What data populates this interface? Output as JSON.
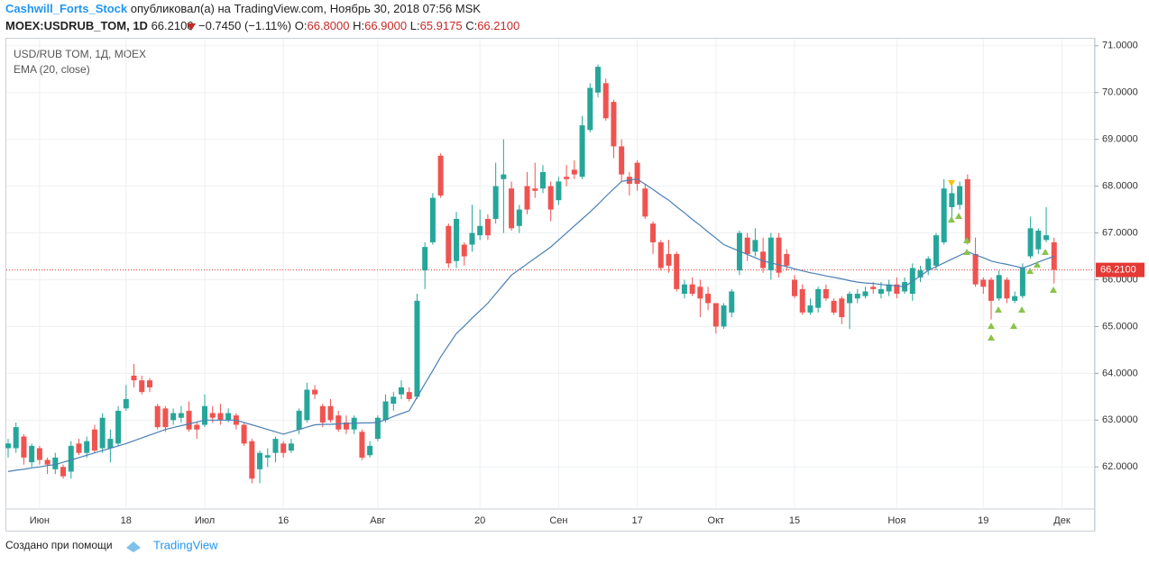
{
  "header": {
    "author": "Cashwill_Forts_Stock",
    "published": "опубликовал(а) на TradingView.com, Ноябрь 30, 2018 07:56 MSK",
    "symbol": "MOEX:USDRUB_TOM, 1D",
    "last": "66.2100",
    "change": "−0.7450 (−1.11%)",
    "o_label": "O:",
    "o_value": "66.8000",
    "h_label": "H:",
    "h_value": "66.9000",
    "l_label": "L:",
    "l_value": "65.9175",
    "c_label": "C:",
    "c_value": "66.2100"
  },
  "footer": {
    "prefix": "Создано при помощи",
    "brand": "TradingView"
  },
  "chart_data": {
    "type": "candlestick",
    "title": "USD/RUB TOM, 1Д, MOEX",
    "up_color": "#26a69a",
    "down_color": "#ef5350",
    "grid": true,
    "categories": [
      null,
      null,
      null,
      null,
      "Июн",
      null,
      null,
      null,
      null,
      null,
      null,
      null,
      null,
      null,
      null,
      "18",
      null,
      null,
      null,
      null,
      null,
      null,
      null,
      null,
      null,
      "Июл",
      null,
      null,
      null,
      null,
      null,
      null,
      null,
      null,
      null,
      "16",
      null,
      null,
      null,
      null,
      null,
      null,
      null,
      null,
      null,
      null,
      null,
      "Авг",
      null,
      null,
      null,
      null,
      null,
      null,
      null,
      null,
      null,
      null,
      null,
      null,
      "20",
      null,
      null,
      null,
      null,
      null,
      null,
      null,
      null,
      null,
      "Сен",
      null,
      null,
      null,
      null,
      null,
      null,
      null,
      null,
      null,
      "17",
      null,
      null,
      null,
      null,
      null,
      null,
      null,
      null,
      null,
      "Окт",
      null,
      null,
      null,
      null,
      null,
      null,
      null,
      null,
      null,
      "15",
      null,
      null,
      null,
      null,
      null,
      null,
      null,
      null,
      null,
      null,
      null,
      null,
      "Ноя",
      null,
      null,
      null,
      null,
      null,
      null,
      null,
      null,
      null,
      null,
      "19",
      null,
      null,
      null,
      null,
      null,
      null,
      null,
      null,
      null,
      "Дек"
    ],
    "open": [
      62.4,
      62.4,
      62.65,
      62.1,
      62.4,
      62.15,
      61.95,
      62.0,
      61.9,
      62.5,
      62.3,
      62.8,
      62.4,
      62.4,
      62.5,
      63.25,
      63.95,
      63.85,
      63.85,
      63.3,
      63.25,
      63.0,
      63.05,
      63.2,
      62.9,
      62.9,
      63.15,
      63.15,
      63.0,
      63.1,
      62.9,
      62.55,
      61.95,
      62.2,
      62.3,
      62.5,
      62.35,
      62.8,
      63.0,
      63.65,
      63.3,
      63.3,
      63.1,
      62.95,
      62.8,
      62.75,
      62.25,
      62.6,
      63.0,
      63.35,
      63.55,
      63.6,
      63.5,
      66.2,
      66.8,
      68.65,
      67.15,
      66.4,
      66.75,
      66.75,
      66.95,
      67.3,
      67.3,
      68.15,
      67.95,
      67.15,
      68.0,
      67.95,
      67.95,
      68.0,
      67.7,
      68.2,
      68.35,
      68.2,
      69.2,
      70.0,
      70.2,
      69.8,
      68.85,
      68.2,
      68.5,
      67.95,
      67.2,
      66.8,
      66.55,
      66.55,
      65.7,
      65.9,
      65.85,
      65.7,
      65.5,
      65.0,
      65.3,
      66.2,
      66.9,
      66.6,
      66.6,
      66.2,
      66.9,
      66.55,
      66.0,
      65.8,
      65.3,
      65.4,
      65.8,
      65.55,
      65.6,
      65.5,
      65.6,
      65.65,
      65.85,
      65.7,
      65.75,
      65.9,
      65.75,
      65.7,
      66.05,
      66.2,
      66.3,
      66.8,
      67.55,
      67.6,
      68.15,
      66.55,
      66.0,
      66.0,
      65.6,
      66.0,
      65.55,
      65.65,
      66.5,
      66.65,
      66.85,
      66.8,
      null
    ],
    "high": [
      62.6,
      62.95,
      62.7,
      62.5,
      62.45,
      62.2,
      62.3,
      62.05,
      62.55,
      62.6,
      62.65,
      62.9,
      63.15,
      62.8,
      63.3,
      63.75,
      64.2,
      63.95,
      63.9,
      63.35,
      63.3,
      63.25,
      63.3,
      63.4,
      62.95,
      63.55,
      63.3,
      63.35,
      63.25,
      63.15,
      62.95,
      62.6,
      62.35,
      62.4,
      62.65,
      62.55,
      62.6,
      63.25,
      63.8,
      63.75,
      63.35,
      63.45,
      63.2,
      63.1,
      63.1,
      62.8,
      62.55,
      63.1,
      63.55,
      63.6,
      63.85,
      63.7,
      65.7,
      66.8,
      67.85,
      68.7,
      67.2,
      67.45,
      66.8,
      67.6,
      67.5,
      67.4,
      68.5,
      69.0,
      68.1,
      67.6,
      68.3,
      68.5,
      68.45,
      68.1,
      68.2,
      68.45,
      68.55,
      69.5,
      70.2,
      70.6,
      70.3,
      69.85,
      69.0,
      68.3,
      68.55,
      68.05,
      67.25,
      66.85,
      66.85,
      66.6,
      66.0,
      66.05,
      66.0,
      65.85,
      65.5,
      65.5,
      65.8,
      67.05,
      67.0,
      67.1,
      66.9,
      67.0,
      67.0,
      66.65,
      66.1,
      65.9,
      65.6,
      65.85,
      65.9,
      65.6,
      65.65,
      65.75,
      65.8,
      65.85,
      65.95,
      65.95,
      66.0,
      66.05,
      66.05,
      66.35,
      66.3,
      66.5,
      67.0,
      68.15,
      68.05,
      68.1,
      68.25,
      66.9,
      66.05,
      66.05,
      66.2,
      66.05,
      65.75,
      66.35,
      67.35,
      67.1,
      67.55,
      66.9,
      null
    ],
    "low": [
      62.2,
      62.3,
      62.05,
      62.0,
      62.05,
      61.85,
      61.85,
      61.75,
      61.75,
      62.25,
      62.2,
      62.3,
      62.3,
      62.1,
      62.45,
      63.2,
      63.7,
      63.55,
      63.6,
      62.8,
      62.75,
      62.9,
      62.95,
      62.75,
      62.6,
      62.85,
      62.95,
      62.9,
      62.95,
      62.8,
      62.45,
      61.65,
      61.65,
      62.0,
      62.1,
      62.2,
      62.3,
      62.7,
      62.95,
      63.45,
      62.85,
      62.95,
      62.75,
      62.7,
      62.7,
      62.15,
      62.2,
      62.55,
      62.95,
      63.2,
      63.45,
      63.4,
      63.45,
      65.8,
      66.75,
      67.75,
      66.25,
      66.25,
      66.3,
      66.6,
      66.85,
      66.85,
      67.2,
      67.0,
      67.05,
      67.0,
      67.4,
      67.75,
      67.85,
      67.25,
      67.6,
      68.0,
      68.15,
      68.15,
      69.15,
      69.9,
      69.4,
      68.6,
      68.1,
      67.8,
      67.9,
      67.3,
      66.55,
      66.2,
      66.15,
      65.75,
      65.6,
      65.65,
      65.2,
      65.35,
      64.85,
      64.95,
      65.2,
      66.1,
      66.4,
      66.5,
      66.15,
      66.0,
      66.05,
      66.2,
      65.6,
      65.25,
      65.25,
      65.3,
      65.55,
      65.25,
      65.05,
      64.95,
      65.5,
      65.6,
      65.7,
      65.6,
      65.65,
      65.6,
      65.7,
      65.55,
      65.95,
      66.1,
      66.2,
      66.75,
      67.3,
      67.5,
      66.75,
      65.85,
      65.7,
      65.15,
      65.55,
      65.5,
      65.5,
      65.6,
      66.45,
      66.55,
      66.8,
      65.9175,
      null
    ],
    "close": [
      62.5,
      62.85,
      62.2,
      62.45,
      62.15,
      62.05,
      62.2,
      61.8,
      62.45,
      62.3,
      62.55,
      62.35,
      63.05,
      62.6,
      63.2,
      63.45,
      63.85,
      63.6,
      63.7,
      62.85,
      62.85,
      63.15,
      63.15,
      62.8,
      62.8,
      63.3,
      63.05,
      63.0,
      63.15,
      62.9,
      62.5,
      61.75,
      62.3,
      62.25,
      62.6,
      62.3,
      62.5,
      63.2,
      63.65,
      63.55,
      62.95,
      63.0,
      62.8,
      62.8,
      63.05,
      62.2,
      62.45,
      63.05,
      63.4,
      63.5,
      63.7,
      63.45,
      65.55,
      66.7,
      67.75,
      67.8,
      66.35,
      67.3,
      66.5,
      67.0,
      67.15,
      66.95,
      68.0,
      68.25,
      67.1,
      67.5,
      67.5,
      67.9,
      68.3,
      67.5,
      68.1,
      68.15,
      68.25,
      69.3,
      70.1,
      70.55,
      69.45,
      68.85,
      68.25,
      68.05,
      68.05,
      67.35,
      66.8,
      66.25,
      66.3,
      65.8,
      65.9,
      65.7,
      65.6,
      65.5,
      65.0,
      65.45,
      65.75,
      67.0,
      66.55,
      66.85,
      66.25,
      66.9,
      66.15,
      66.3,
      65.65,
      65.3,
      65.45,
      65.8,
      65.6,
      65.3,
      65.2,
      65.7,
      65.7,
      65.75,
      65.8,
      65.8,
      65.9,
      65.7,
      65.95,
      66.25,
      66.2,
      66.45,
      66.95,
      67.95,
      67.85,
      68.0,
      66.8,
      65.9,
      65.85,
      65.55,
      66.1,
      65.6,
      65.65,
      66.25,
      67.1,
      67.05,
      66.95,
      66.21,
      null
    ],
    "series": [
      {
        "name": "EMA (20, close)",
        "color": "#4a7fb5",
        "values": [
          61.9,
          61.93,
          61.95,
          61.98,
          62.0,
          62.03,
          62.05,
          62.1,
          62.15,
          62.2,
          62.25,
          62.3,
          62.35,
          62.4,
          62.45,
          62.5,
          62.56,
          62.62,
          62.68,
          62.74,
          62.8,
          62.84,
          62.88,
          62.92,
          62.96,
          63.0,
          63.0,
          63.0,
          63.0,
          63.0,
          62.95,
          62.9,
          62.85,
          62.8,
          62.75,
          62.7,
          62.75,
          62.8,
          62.85,
          62.9,
          62.91,
          62.91,
          62.92,
          62.93,
          62.93,
          62.94,
          62.94,
          62.95,
          63.01,
          63.08,
          63.14,
          63.2,
          63.49,
          63.78,
          64.06,
          64.35,
          64.6,
          64.85,
          65.01,
          65.18,
          65.34,
          65.5,
          65.7,
          65.9,
          66.1,
          66.22,
          66.34,
          66.46,
          66.58,
          66.7,
          66.85,
          67.0,
          67.15,
          67.3,
          67.45,
          67.61,
          67.78,
          67.94,
          68.1,
          68.13,
          68.15,
          68.04,
          67.93,
          67.81,
          67.7,
          67.56,
          67.43,
          67.29,
          67.16,
          67.02,
          66.89,
          66.75,
          66.68,
          66.61,
          66.54,
          66.47,
          66.4,
          66.36,
          66.32,
          66.28,
          66.23,
          66.19,
          66.15,
          66.12,
          66.08,
          66.05,
          66.02,
          65.98,
          65.95,
          65.93,
          65.92,
          65.9,
          65.88,
          65.87,
          65.85,
          65.97,
          66.08,
          66.2,
          66.28,
          66.36,
          66.44,
          66.52,
          66.6,
          66.53,
          66.47,
          66.4,
          66.36,
          66.33,
          66.29,
          66.25,
          66.31,
          66.38,
          66.44,
          66.5,
          null
        ]
      }
    ],
    "ylim": [
      61.1,
      71.15
    ],
    "yticks": [
      {
        "value": 62,
        "label": "62.0000"
      },
      {
        "value": 63,
        "label": "63.0000"
      },
      {
        "value": 64,
        "label": "64.0000"
      },
      {
        "value": 65,
        "label": "65.0000"
      },
      {
        "value": 66,
        "label": "66.0000"
      },
      {
        "value": 67,
        "label": "67.0000"
      },
      {
        "value": 68,
        "label": "68.0000"
      },
      {
        "value": 69,
        "label": "69.0000"
      },
      {
        "value": 70,
        "label": "70.0000"
      },
      {
        "value": 71,
        "label": "71.0000"
      }
    ],
    "price_line": {
      "value": 66.21,
      "label": "66.2100",
      "color": "#e53935"
    }
  }
}
